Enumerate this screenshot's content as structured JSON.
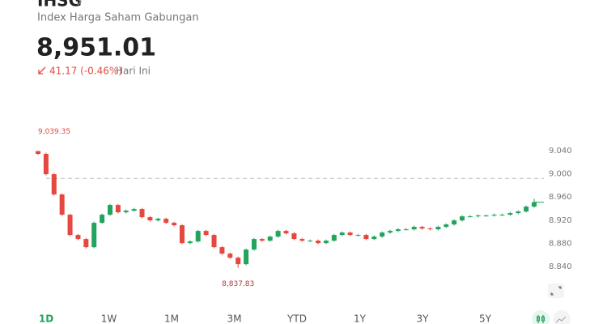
{
  "header": {
    "title": "IHSG",
    "subtitle": "Index Harga Saham Gabungan",
    "price": "8,951.01",
    "change": "41.17 (-0.46%)",
    "period": "Hari Ini"
  },
  "ranges": [
    "1D",
    "1W",
    "1M",
    "3M",
    "YTD",
    "1Y",
    "3Y",
    "5Y"
  ],
  "chart_data": {
    "type": "candlestick",
    "up_color": "#22a45d",
    "down_color": "#e5483f",
    "ylim": [
      8820,
      9060
    ],
    "yticks": [
      {
        "value": 8840,
        "label": "8.840"
      },
      {
        "value": 8880,
        "label": "8.880"
      },
      {
        "value": 8920,
        "label": "8.920"
      },
      {
        "value": 8960,
        "label": "8.960"
      },
      {
        "value": 9000,
        "label": "9.000"
      },
      {
        "value": 9040,
        "label": "9.040"
      }
    ],
    "previous_close": 8992.18,
    "max_label": "9,039.35",
    "min_label": "8,837.83",
    "candles": {
      "open": [
        9039.35,
        9034.4,
        8999.4,
        8964.4,
        8929.4,
        8894.4,
        8887.4,
        8873.4,
        8915.4,
        8929.4,
        8946.2,
        8933.6,
        8936.4,
        8939.2,
        8925.2,
        8919.6,
        8922.4,
        8915.4,
        8911.2,
        8880.4,
        8883.2,
        8901.4,
        8894.4,
        8873.4,
        8862.2,
        8855.2,
        8844.0,
        8869.2,
        8887.4,
        8884.6,
        8891.6,
        8901.4,
        8897.2,
        8887.4,
        8884.6,
        8884.6,
        8880.4,
        8884.6,
        8894.4,
        8898.6,
        8894.4,
        8894.4,
        8887.4,
        8891.6,
        8898.6,
        8901.4,
        8904.2,
        8904.2,
        8908.4,
        8905.6,
        8904.2,
        8908.4,
        8912.6,
        8919.6,
        8926.6,
        8926.6,
        8928.0,
        8928.0,
        8929.4,
        8929.4,
        8932.2,
        8935.0,
        8943.4
      ],
      "high": [
        9039.35,
        9036.4,
        9001.4,
        8966.4,
        8931.4,
        8896.4,
        8889.4,
        8917.4,
        8931.4,
        8948.2,
        8948.2,
        8938.4,
        8941.2,
        8941.2,
        8927.2,
        8924.4,
        8924.4,
        8917.4,
        8913.2,
        8885.2,
        8903.4,
        8903.4,
        8896.4,
        8875.4,
        8864.2,
        8857.2,
        8871.2,
        8889.4,
        8889.4,
        8893.6,
        8903.4,
        8903.4,
        8899.2,
        8889.4,
        8886.6,
        8886.6,
        8886.6,
        8896.4,
        8900.6,
        8900.6,
        8896.4,
        8896.4,
        8893.6,
        8900.6,
        8903.4,
        8906.2,
        8906.2,
        8910.4,
        8910.4,
        8907.6,
        8910.4,
        8914.6,
        8921.6,
        8928.6,
        8928.6,
        8930.0,
        8930.0,
        8931.4,
        8931.4,
        8934.2,
        8937.0,
        8945.4,
        8956.6
      ],
      "low": [
        9032.4,
        8997.4,
        8962.4,
        8927.4,
        8892.4,
        8885.4,
        8871.4,
        8871.4,
        8913.4,
        8927.4,
        8931.6,
        8931.6,
        8934.4,
        8923.2,
        8917.6,
        8917.6,
        8913.4,
        8909.2,
        8878.4,
        8878.4,
        8881.2,
        8892.4,
        8871.4,
        8860.2,
        8853.2,
        8837.83,
        8842.0,
        8867.2,
        8882.6,
        8882.6,
        8889.6,
        8895.2,
        8885.4,
        8882.6,
        8882.6,
        8878.4,
        8878.4,
        8882.6,
        8892.4,
        8892.4,
        8892.4,
        8885.4,
        8885.4,
        8889.6,
        8896.6,
        8899.4,
        8902.2,
        8902.2,
        8903.6,
        8902.2,
        8902.2,
        8906.4,
        8910.6,
        8917.6,
        8924.6,
        8924.6,
        8926.0,
        8926.0,
        8927.4,
        8927.4,
        8930.2,
        8933.0,
        8941.4
      ],
      "close": [
        9034.4,
        8999.4,
        8964.4,
        8929.4,
        8894.4,
        8887.4,
        8873.4,
        8915.4,
        8929.4,
        8946.2,
        8933.6,
        8936.4,
        8939.2,
        8925.2,
        8919.6,
        8922.4,
        8915.4,
        8911.2,
        8880.4,
        8883.2,
        8901.4,
        8894.4,
        8873.4,
        8862.2,
        8855.2,
        8844.0,
        8869.2,
        8887.4,
        8884.6,
        8891.6,
        8901.4,
        8897.2,
        8887.4,
        8884.6,
        8884.6,
        8880.4,
        8884.6,
        8894.4,
        8898.6,
        8894.4,
        8894.4,
        8887.4,
        8891.6,
        8898.6,
        8901.4,
        8904.2,
        8904.2,
        8908.4,
        8905.6,
        8904.2,
        8908.4,
        8912.6,
        8919.6,
        8926.6,
        8926.6,
        8928.0,
        8928.0,
        8929.4,
        8929.4,
        8932.2,
        8935.0,
        8943.4,
        8951.01
      ]
    }
  }
}
